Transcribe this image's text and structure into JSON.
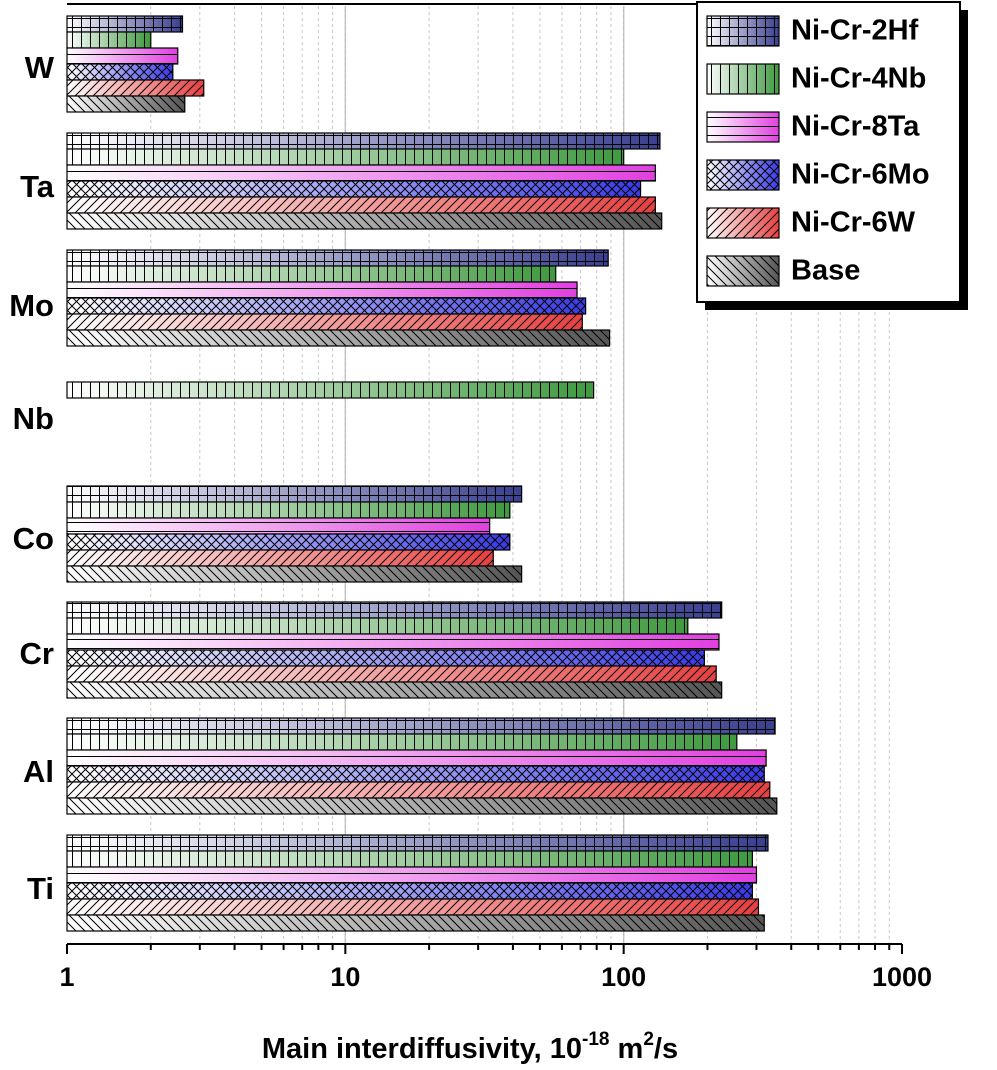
{
  "chart_data": {
    "type": "bar",
    "orientation": "horizontal",
    "xscale": "log",
    "xlim": [
      1,
      1000
    ],
    "xticks": [
      "1",
      "10",
      "100",
      "1000"
    ],
    "xlabel": {
      "main": "Main interdiffusivity, 10",
      "exp1": "-18",
      "mid": " m",
      "exp2": "2",
      "end": "/s"
    },
    "categories": [
      "W",
      "Ta",
      "Mo",
      "Nb",
      "Co",
      "Cr",
      "Al",
      "Ti"
    ],
    "series": [
      {
        "name": "Ni-Cr-2Hf",
        "color": "#3a3f8f",
        "pattern": "grid",
        "values": [
          2.6,
          135,
          88,
          null,
          43,
          225,
          350,
          330
        ]
      },
      {
        "name": "Ni-Cr-4Nb",
        "color": "#3f9a3f",
        "pattern": "vertical",
        "values": [
          2.0,
          100,
          57,
          78,
          39,
          170,
          255,
          290
        ]
      },
      {
        "name": "Ni-Cr-8Ta",
        "color": "#e040e0",
        "pattern": "horizontal",
        "values": [
          2.5,
          130,
          68,
          null,
          33,
          220,
          325,
          300
        ]
      },
      {
        "name": "Ni-Cr-6Mo",
        "color": "#3a3ae8",
        "pattern": "crosshatch",
        "values": [
          2.4,
          115,
          73,
          null,
          39,
          195,
          320,
          290
        ]
      },
      {
        "name": "Ni-Cr-6W",
        "color": "#e84040",
        "pattern": "diag-up",
        "values": [
          3.1,
          130,
          71,
          null,
          34,
          215,
          335,
          305
        ]
      },
      {
        "name": "Base",
        "color": "#555555",
        "pattern": "diag-down",
        "values": [
          2.65,
          137,
          89,
          null,
          43,
          225,
          355,
          320
        ]
      }
    ],
    "legend_position": "top-right",
    "grid": "vertical major and minor"
  }
}
